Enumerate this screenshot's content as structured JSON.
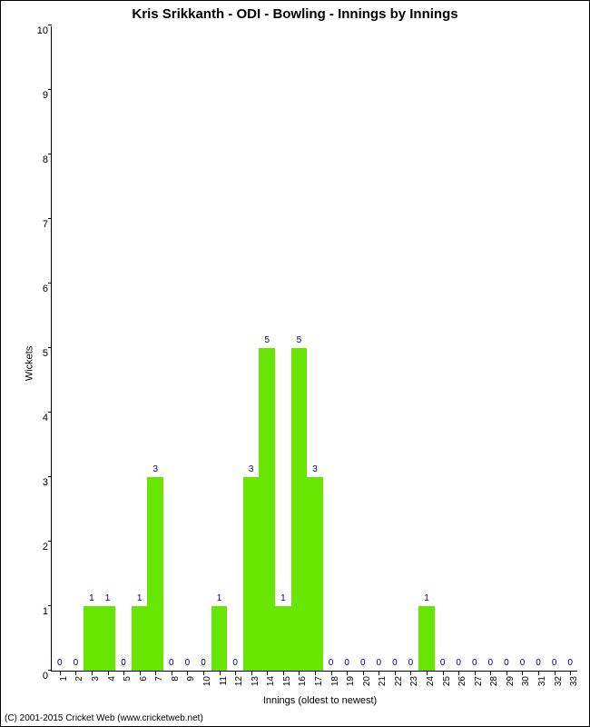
{
  "chart": {
    "type": "bar",
    "title": "Kris Srikkanth - ODI - Bowling - Innings by Innings",
    "xlabel": "Innings (oldest to newest)",
    "ylabel": "Wickets",
    "categories": [
      1,
      2,
      3,
      4,
      5,
      6,
      7,
      8,
      9,
      10,
      11,
      12,
      13,
      14,
      15,
      16,
      17,
      18,
      19,
      20,
      21,
      22,
      23,
      24,
      25,
      26,
      27,
      28,
      29,
      30,
      31,
      32,
      33
    ],
    "values": [
      0,
      0,
      1,
      1,
      0,
      1,
      3,
      0,
      0,
      0,
      1,
      0,
      3,
      5,
      1,
      5,
      3,
      0,
      0,
      0,
      0,
      0,
      0,
      1,
      0,
      0,
      0,
      0,
      0,
      0,
      0,
      0,
      0
    ],
    "bar_color": "#66e600",
    "label_color": "#000080",
    "background_color": "#ffffff",
    "axis_color": "#000000",
    "ylim": [
      0,
      10
    ],
    "ytick_step": 1,
    "bar_width": 1.0,
    "title_fontsize": 15,
    "label_fontsize": 11,
    "tick_fontsize": 10,
    "value_label_fontsize": 10
  },
  "copyright": "(C) 2001-2015 Cricket Web (www.cricketweb.net)"
}
